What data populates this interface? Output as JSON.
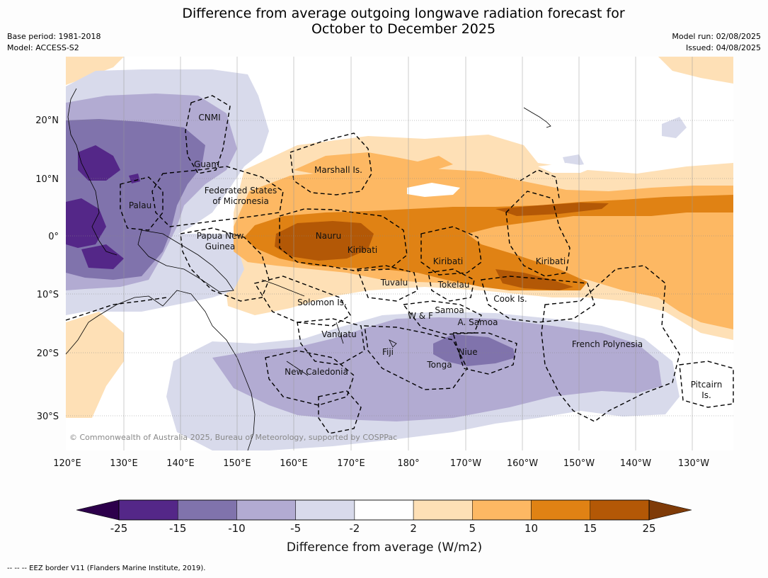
{
  "title": {
    "line1": "Difference from average outgoing longwave radiation forecast for",
    "line2": "October to December 2025"
  },
  "meta": {
    "base_period": "Base period: 1981-2018",
    "model": "Model: ACCESS-S2",
    "model_run": "Model run: 02/08/2025",
    "issued": "Issued: 04/08/2025"
  },
  "map": {
    "region": "Western and central tropical Pacific",
    "lon_labels": [
      "120°E",
      "130°E",
      "140°E",
      "150°E",
      "160°E",
      "170°E",
      "180°",
      "170°W",
      "160°W",
      "150°W",
      "140°W",
      "130°W"
    ],
    "lat_labels": [
      "20°N",
      "10°N",
      "0°",
      "10°S",
      "20°S",
      "30°S"
    ],
    "places": {
      "cnmi": "CNMI",
      "guam": "Guam",
      "palau": "Palau",
      "fsm_1": "Federated States",
      "fsm_2": "of Micronesia",
      "marshall": "Marshall Is.",
      "png_1": "Papua New",
      "png_2": "Guinea",
      "nauru": "Nauru",
      "kiribati_w": "Kiribati",
      "kiribati_c": "Kiribati",
      "kiribati_e": "Kiribati",
      "tuvalu": "Tuvalu",
      "tokelau": "Tokelau",
      "solomon": "Solomon Is.",
      "samoa": "Samoa",
      "wf": "W & F",
      "asamoa": "A. Samoa",
      "cook": "Cook Is.",
      "vanuatu": "Vanuatu",
      "fiji": "Fiji",
      "niue": "Niue",
      "tonga": "Tonga",
      "french_polynesia": "French Polynesia",
      "new_caledonia": "New Caledonia",
      "pitcairn_1": "Pitcairn",
      "pitcairn_2": "Is."
    },
    "copyright": "© Commonwealth of Australia 2025, Bureau of Meteorology, supported by COSPPac"
  },
  "colorbar": {
    "ticks": [
      "-25",
      "-15",
      "-10",
      "-5",
      "-2",
      "2",
      "5",
      "10",
      "15",
      "25"
    ],
    "colors": [
      "#542788",
      "#8073ac",
      "#b2abd2",
      "#d8daeb",
      "#ffffff",
      "#fee0b6",
      "#fdb863",
      "#e08214",
      "#b35806"
    ],
    "extend_low_color": "#2d004b",
    "extend_high_color": "#7f3b08",
    "title": "Difference from average (W/m2)"
  },
  "footer": {
    "eez_note": "--  --  -- EEZ border V11 (Flanders Marine Institute, 2019)."
  }
}
